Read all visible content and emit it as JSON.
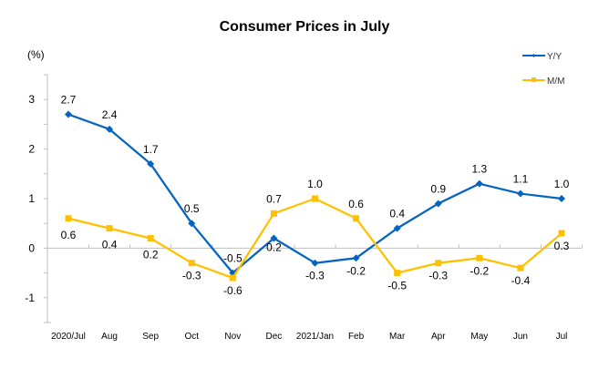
{
  "chart_data": {
    "type": "line",
    "title": "Consumer Prices in July",
    "ylabel": "(%)",
    "xlabel": "",
    "ylim": [
      -1.5,
      3.5
    ],
    "yticks": [
      -1,
      0,
      1,
      2,
      3
    ],
    "ytick_labels": [
      "-1",
      "0",
      "1",
      "2",
      "3"
    ],
    "grid": false,
    "legend_position": "top-right",
    "categories": [
      "2020/Jul",
      "Aug",
      "Sep",
      "Oct",
      "Nov",
      "Dec",
      "2021/Jan",
      "Feb",
      "Mar",
      "Apr",
      "May",
      "Jun",
      "Jul"
    ],
    "series": [
      {
        "name": "Y/Y",
        "color": "#0563C1",
        "marker": "diamond",
        "values": [
          2.7,
          2.4,
          1.7,
          0.5,
          -0.5,
          0.2,
          -0.3,
          -0.2,
          0.4,
          0.9,
          1.3,
          1.1,
          1.0
        ],
        "labels": [
          "2.7",
          "2.4",
          "1.7",
          "0.5",
          "-0.5",
          "0.2",
          "-0.3",
          "-0.2",
          "0.4",
          "0.9",
          "1.3",
          "1.1",
          "1.0"
        ]
      },
      {
        "name": "M/M",
        "color": "#FFC000",
        "marker": "square",
        "values": [
          0.6,
          0.4,
          0.2,
          -0.3,
          -0.6,
          0.7,
          1.0,
          0.6,
          -0.5,
          -0.3,
          -0.2,
          -0.4,
          0.3
        ],
        "labels": [
          "0.6",
          "0.4",
          "0.2",
          "-0.3",
          "-0.6",
          "0.7",
          "1.0",
          "0.6",
          "-0.5",
          "-0.3",
          "-0.2",
          "-0.4",
          "0.3"
        ]
      }
    ]
  }
}
